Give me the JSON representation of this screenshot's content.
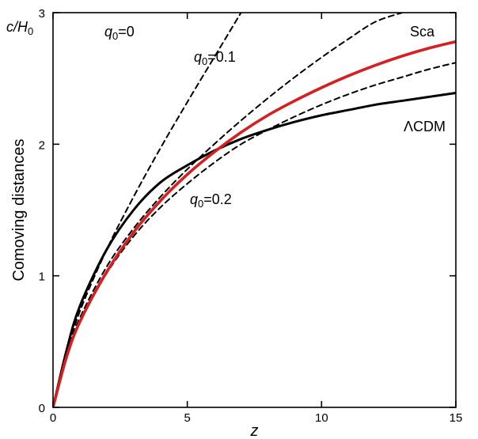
{
  "chart_data": {
    "type": "line",
    "xlabel": "z",
    "ylabel": "Comoving distances",
    "yunit": "c/H0",
    "xlim": [
      0,
      15
    ],
    "ylim": [
      0,
      3
    ],
    "xticks": [
      "0",
      "5",
      "10",
      "15"
    ],
    "yticks": [
      "0",
      "1",
      "2",
      "3"
    ],
    "grid": false,
    "series": [
      {
        "name": "q0=0",
        "style": "dashed",
        "color": "#000000",
        "label": {
          "q": "q",
          "sub": "0",
          "rest": "=0"
        },
        "points": [
          [
            0,
            0
          ],
          [
            0.5,
            0.4
          ],
          [
            1,
            0.73
          ],
          [
            2,
            1.2
          ],
          [
            3,
            1.6
          ],
          [
            4,
            1.97
          ],
          [
            5,
            2.32
          ],
          [
            6,
            2.66
          ],
          [
            7,
            3.0
          ]
        ]
      },
      {
        "name": "q0=0.1",
        "style": "dashed",
        "color": "#000000",
        "label": {
          "q": "q",
          "sub": "0",
          "rest": "=0.1"
        },
        "points": [
          [
            0,
            0
          ],
          [
            0.5,
            0.4
          ],
          [
            1,
            0.68
          ],
          [
            2,
            1.07
          ],
          [
            3,
            1.36
          ],
          [
            4,
            1.6
          ],
          [
            5,
            1.81
          ],
          [
            6,
            2.0
          ],
          [
            7,
            2.18
          ],
          [
            8,
            2.35
          ],
          [
            9,
            2.51
          ],
          [
            10,
            2.66
          ],
          [
            11,
            2.8
          ],
          [
            12,
            2.93
          ],
          [
            13,
            3.0
          ]
        ]
      },
      {
        "name": "q0=0.2",
        "style": "dashed",
        "color": "#000000",
        "label": {
          "q": "q",
          "sub": "0",
          "rest": "=0.2"
        },
        "points": [
          [
            0,
            0
          ],
          [
            0.5,
            0.38
          ],
          [
            1,
            0.66
          ],
          [
            2,
            1.02
          ],
          [
            3,
            1.3
          ],
          [
            4,
            1.52
          ],
          [
            5,
            1.7
          ],
          [
            6,
            1.86
          ],
          [
            7,
            2.0
          ],
          [
            8,
            2.11
          ],
          [
            9,
            2.21
          ],
          [
            10,
            2.3
          ],
          [
            11,
            2.38
          ],
          [
            12,
            2.45
          ],
          [
            13,
            2.51
          ],
          [
            14,
            2.57
          ],
          [
            15,
            2.62
          ]
        ]
      },
      {
        "name": "ΛCDM",
        "style": "solid",
        "color": "#000000",
        "label": {
          "text": "ΛCDM"
        },
        "points": [
          [
            0,
            0
          ],
          [
            0.5,
            0.43
          ],
          [
            1,
            0.77
          ],
          [
            2,
            1.2
          ],
          [
            3,
            1.5
          ],
          [
            4,
            1.71
          ],
          [
            5,
            1.84
          ],
          [
            6,
            1.95
          ],
          [
            7,
            2.04
          ],
          [
            8,
            2.11
          ],
          [
            9,
            2.17
          ],
          [
            10,
            2.22
          ],
          [
            11,
            2.26
          ],
          [
            12,
            2.3
          ],
          [
            13,
            2.33
          ],
          [
            14,
            2.36
          ],
          [
            15,
            2.39
          ]
        ]
      },
      {
        "name": "Sca",
        "style": "solid",
        "color": "#d42020",
        "label": {
          "text": "Sca"
        },
        "points": [
          [
            0,
            0
          ],
          [
            0.5,
            0.38
          ],
          [
            1,
            0.65
          ],
          [
            2,
            1.03
          ],
          [
            3,
            1.33
          ],
          [
            4,
            1.57
          ],
          [
            5,
            1.77
          ],
          [
            6,
            1.94
          ],
          [
            7,
            2.09
          ],
          [
            8,
            2.22
          ],
          [
            9,
            2.33
          ],
          [
            10,
            2.43
          ],
          [
            11,
            2.52
          ],
          [
            12,
            2.6
          ],
          [
            13,
            2.67
          ],
          [
            14,
            2.73
          ],
          [
            15,
            2.78
          ]
        ]
      }
    ]
  }
}
